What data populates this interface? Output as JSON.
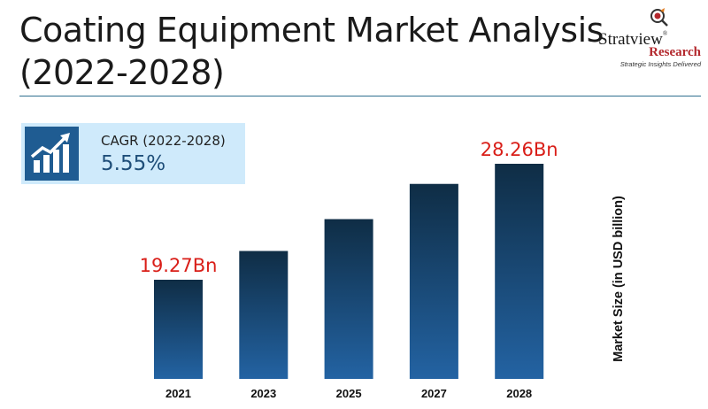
{
  "header": {
    "title_line1": "Coating Equipment Market Analysis",
    "title_line2": "(2022-2028)"
  },
  "logo": {
    "name": "Stratview",
    "registered": "®",
    "sub": "Research",
    "tagline": "Strategic Insights Delivered"
  },
  "cagr": {
    "label": "CAGR (2022-2028)",
    "value": "5.55%",
    "icon": "growth-chart-icon"
  },
  "colors": {
    "bar_top": "#0f2d45",
    "bar_bottom": "#2363a3",
    "value_label": "#d91e18",
    "title_rule": "#2f6f8f",
    "cagr_bg": "#cfeafb",
    "cagr_icon_bg": "#1f5c92"
  },
  "chart_data": {
    "type": "bar",
    "categories": [
      "2021",
      "2023",
      "2025",
      "2027",
      "2028"
    ],
    "values": [
      19.27,
      21.5,
      23.97,
      26.7,
      28.26
    ],
    "data_labels": [
      "19.27Bn",
      "",
      "",
      "",
      "28.26Bn"
    ],
    "ylabel": "Market Size (in USD billion)",
    "grid": false,
    "legend": "none"
  }
}
